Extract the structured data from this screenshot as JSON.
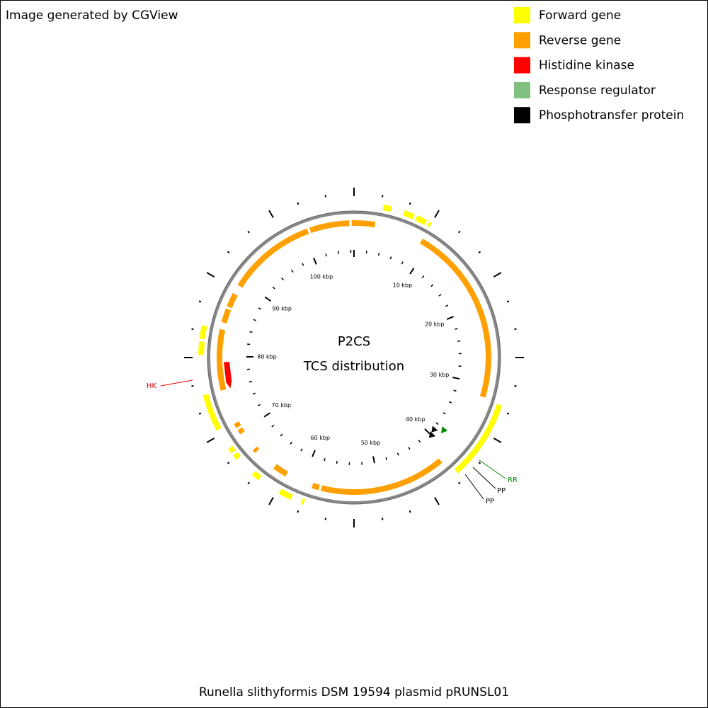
{
  "header": {
    "credit": "Image generated by CGView"
  },
  "legend": [
    {
      "label": "Forward gene",
      "color": "#ffff00"
    },
    {
      "label": "Reverse gene",
      "color": "#ffa000"
    },
    {
      "label": "Histidine kinase",
      "color": "#ff0000"
    },
    {
      "label": "Response regulator",
      "color": "#80c080"
    },
    {
      "label": "Phosphotransfer protein",
      "color": "#000000"
    }
  ],
  "center": {
    "title": "P2CS",
    "subtitle": "TCS distribution"
  },
  "ruler": {
    "labels": [
      "10 kbp",
      "20 kbp",
      "30 kbp",
      "40 kbp",
      "50 kbp",
      "60 kbp",
      "70 kbp",
      "80 kbp",
      "90 kbp",
      "100 kbp"
    ]
  },
  "annotations": [
    {
      "label": "HK"
    },
    {
      "label": "RR"
    },
    {
      "label": "PP"
    },
    {
      "label": "PP"
    }
  ],
  "footer": {
    "title": "Runella slithyformis DSM 19594 plasmid pRUNSL01"
  }
}
